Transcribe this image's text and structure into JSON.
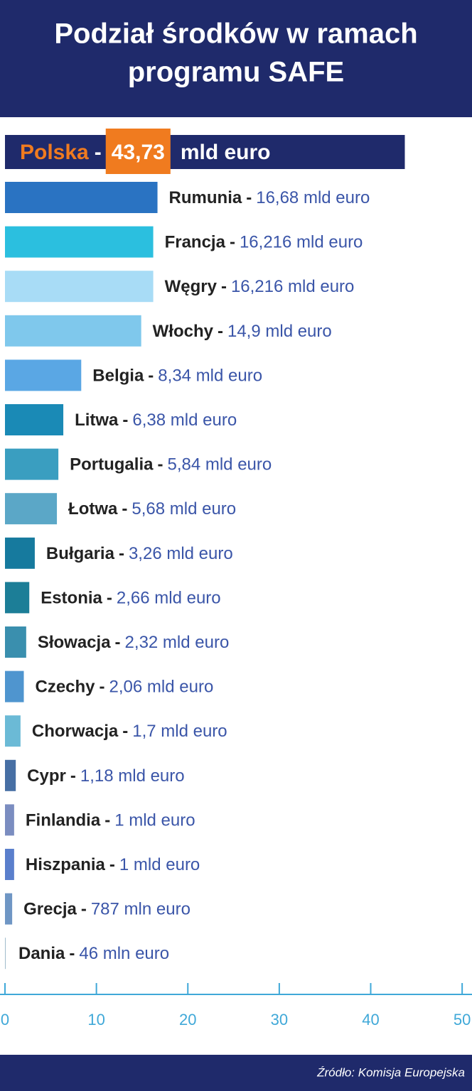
{
  "chart_data": {
    "type": "bar",
    "title_lines": [
      "Podział środków w ramach",
      "programu SAFE"
    ],
    "categories": [
      "Polska",
      "Rumunia",
      "Francja",
      "Węgry",
      "Włochy",
      "Belgia",
      "Litwa",
      "Portugalia",
      "Łotwa",
      "Bułgaria",
      "Estonia",
      "Słowacja",
      "Czechy",
      "Chorwacja",
      "Cypr",
      "Finlandia",
      "Hiszpania",
      "Grecja",
      "Dania"
    ],
    "values": [
      43.73,
      16.68,
      16.216,
      16.216,
      14.9,
      8.34,
      6.38,
      5.84,
      5.68,
      3.26,
      2.66,
      2.32,
      2.06,
      1.7,
      1.18,
      1,
      1,
      0.787,
      0.046
    ],
    "value_labels": [
      "43,73",
      "16,68 mld euro",
      "16,216 mld euro",
      "16,216 mld euro",
      "14,9 mld euro",
      "8,34 mld euro",
      "6,38 mld euro",
      "5,84 mld euro",
      "5,68 mld euro",
      "3,26 mld euro",
      "2,66 mld euro",
      "2,32 mld euro",
      "2,06 mld euro",
      "1,7 mld euro",
      "1,18 mld euro",
      "1 mld euro",
      "1 mld euro",
      "787 mln euro",
      "46 mln euro"
    ],
    "highlight_unit": "mld euro",
    "separator": "-",
    "colors": [
      "#1f2a6b",
      "#2a73c2",
      "#2bbfdf",
      "#a8dcf6",
      "#7fc8ec",
      "#5aa7e4",
      "#1a8ab6",
      "#3a9ec0",
      "#5ba7c7",
      "#167a9e",
      "#1c7e97",
      "#3a8fae",
      "#4f95cf",
      "#6bbad6",
      "#476fa4",
      "#7b8dc0",
      "#5a7fcc",
      "#6f96c4",
      "#5f8fa8"
    ],
    "highlight_color": "#f07b1f",
    "xlim": [
      0,
      51
    ],
    "xticks": [
      0,
      10,
      20,
      30,
      40,
      50
    ],
    "source": "Źródło: Komisja Europejska"
  }
}
